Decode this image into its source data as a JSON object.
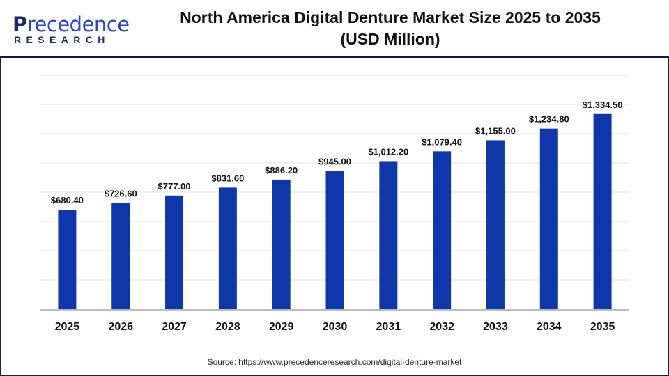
{
  "header": {
    "logo_text": "Precedence",
    "logo_subtext": "RESEARCH",
    "title_line1": "North America Digital Denture Market Size 2025 to 2035",
    "title_line2": "(USD Million)"
  },
  "source": "Source: https://www.precedenceresearch.com/digital-denture-market",
  "colors": {
    "bar": "#0f37aa",
    "header_line": "#15174a",
    "grid": "#e6e6e6"
  },
  "chart_data": {
    "type": "bar",
    "title": "North America Digital Denture Market Size 2025 to 2035 (USD Million)",
    "categories": [
      "2025",
      "2026",
      "2027",
      "2028",
      "2029",
      "2030",
      "2031",
      "2032",
      "2033",
      "2034",
      "2035"
    ],
    "values": [
      680.4,
      726.6,
      777.0,
      831.6,
      886.2,
      945.0,
      1012.2,
      1079.4,
      1155.0,
      1234.8,
      1334.5
    ],
    "labels": [
      "$680.40",
      "$726.60",
      "$777.00",
      "$831.60",
      "$886.20",
      "$945.00",
      "$1,012.20",
      "$1,079.40",
      "$1,155.00",
      "$1,234.80",
      "$1,334.50"
    ],
    "ylim": [
      0,
      1600
    ],
    "grid": true,
    "y_axis_visible": false
  }
}
